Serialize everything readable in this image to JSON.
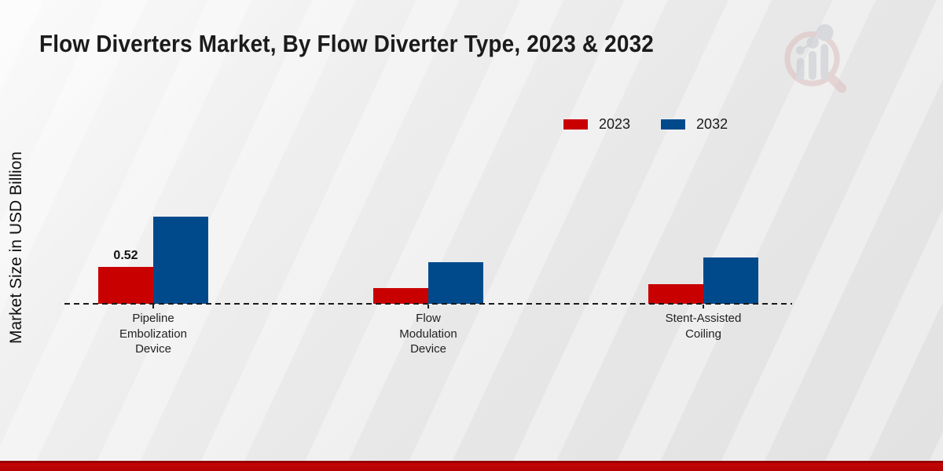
{
  "page": {
    "title": "Flow Diverters Market, By Flow Diverter Type, 2023 & 2032",
    "ylabel": "Market Size in USD Billion"
  },
  "legend": {
    "items": [
      {
        "label": "2023",
        "color": "#c80000"
      },
      {
        "label": "2032",
        "color": "#004a8c"
      }
    ]
  },
  "chart_data": {
    "type": "bar",
    "title": "Flow Diverters Market, By Flow Diverter Type, 2023 & 2032",
    "xlabel": "",
    "ylabel": "Market Size in USD Billion",
    "ylim": [
      0,
      1.4
    ],
    "grid": false,
    "legend_position": "top-right",
    "baseline_style": "dashed",
    "categories": [
      "Pipeline Embolization Device",
      "Flow Modulation Device",
      "Stent-Assisted Coiling"
    ],
    "category_label_lines": [
      [
        "Pipeline",
        "Embolization",
        "Device"
      ],
      [
        "Flow",
        "Modulation",
        "Device"
      ],
      [
        "Stent-Assisted",
        "Coiling"
      ]
    ],
    "series": [
      {
        "name": "2023",
        "color": "#c80000",
        "values": [
          0.52,
          0.22,
          0.28
        ]
      },
      {
        "name": "2032",
        "color": "#004a8c",
        "values": [
          1.23,
          0.59,
          0.65
        ]
      }
    ],
    "data_labels": [
      {
        "series": "2023",
        "category": "Pipeline Embolization Device",
        "text": "0.52"
      }
    ]
  },
  "branding": {
    "watermark_icon": "magnifier-bar-chart-logo",
    "footer_accent_color": "#c60404"
  }
}
